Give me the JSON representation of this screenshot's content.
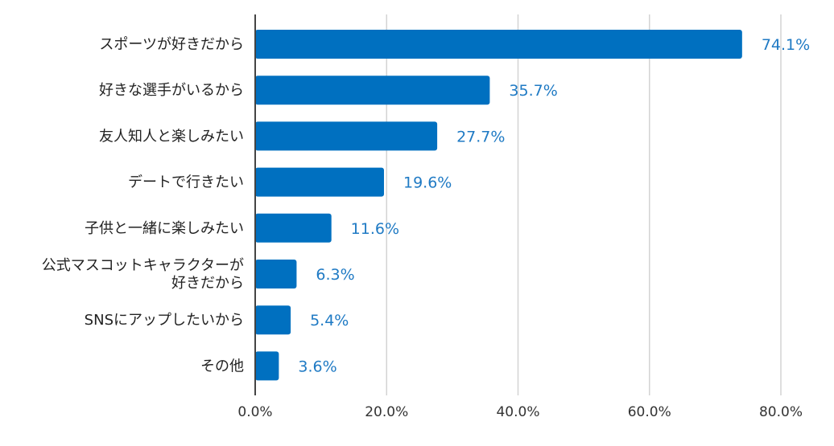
{
  "colors": {
    "bar": "#0070c0",
    "value_label": "#1f7ac4",
    "grid": "#d3d3d3",
    "axis": "#444444",
    "category_text": "#222222",
    "tick_text": "#333333"
  },
  "chart_data": {
    "type": "bar",
    "orientation": "horizontal",
    "categories": [
      [
        "スポーツが好きだから"
      ],
      [
        "好きな選手がいるから"
      ],
      [
        "友人知人と楽しみたい"
      ],
      [
        "デートで行きたい"
      ],
      [
        "子供と一緒に楽しみたい"
      ],
      [
        "公式マスコットキャラクターが",
        "好きだから"
      ],
      [
        "SNSにアップしたいから"
      ],
      [
        "その他"
      ]
    ],
    "values": [
      74.1,
      35.7,
      27.7,
      19.6,
      11.6,
      6.3,
      5.4,
      3.6
    ],
    "value_labels": [
      "74.1%",
      "35.7%",
      "27.7%",
      "19.6%",
      "11.6%",
      "6.3%",
      "5.4%",
      "3.6%"
    ],
    "xlim": [
      0,
      80
    ],
    "xticks": [
      0,
      20,
      40,
      60,
      80
    ],
    "xtick_labels": [
      "0.0%",
      "20.0%",
      "40.0%",
      "60.0%",
      "80.0%"
    ],
    "grid": true,
    "legend": "none"
  }
}
